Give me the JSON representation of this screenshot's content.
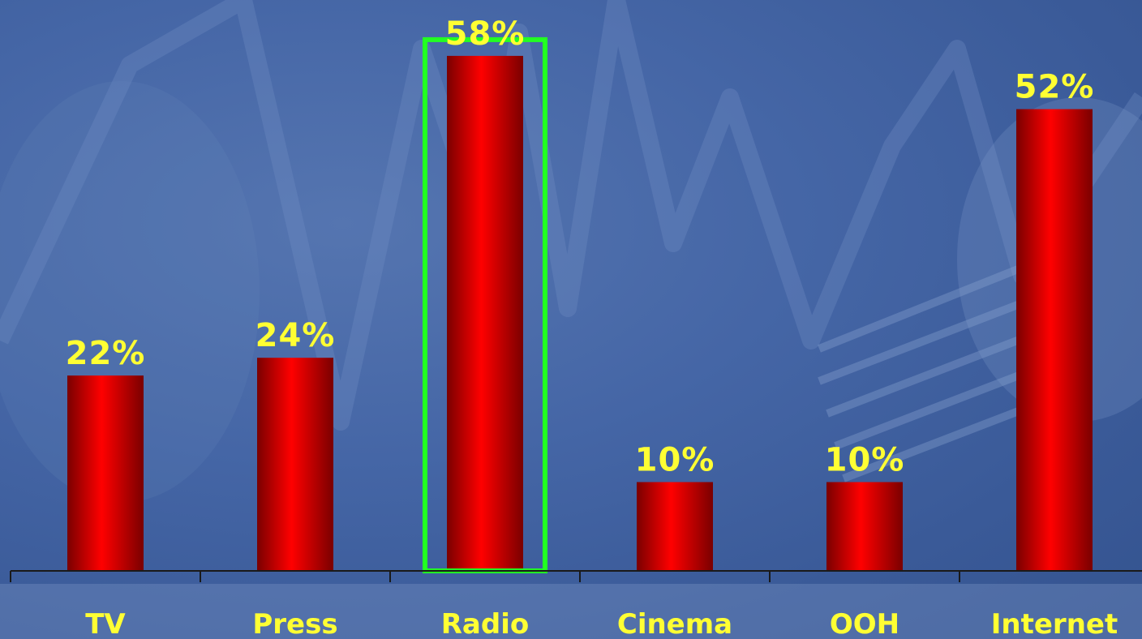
{
  "chart_data": {
    "type": "bar",
    "categories": [
      "TV",
      "Press",
      "Radio",
      "Cinema",
      "OOH",
      "Internet"
    ],
    "values": [
      22,
      24,
      58,
      10,
      10,
      52
    ],
    "value_labels": [
      "22%",
      "24%",
      "58%",
      "10%",
      "10%",
      "52%"
    ],
    "title": "",
    "xlabel": "",
    "ylabel": "",
    "ylim": [
      0,
      60
    ],
    "highlighted_category": "Radio",
    "grid": false,
    "legend": "none"
  },
  "colors": {
    "bar": "#ff0000",
    "bar_shade": "#7a0000",
    "label_text": "#ffff33",
    "highlight_box": "#22ff22",
    "axis": "#1a1a1a",
    "background": "#3f5f9c"
  }
}
